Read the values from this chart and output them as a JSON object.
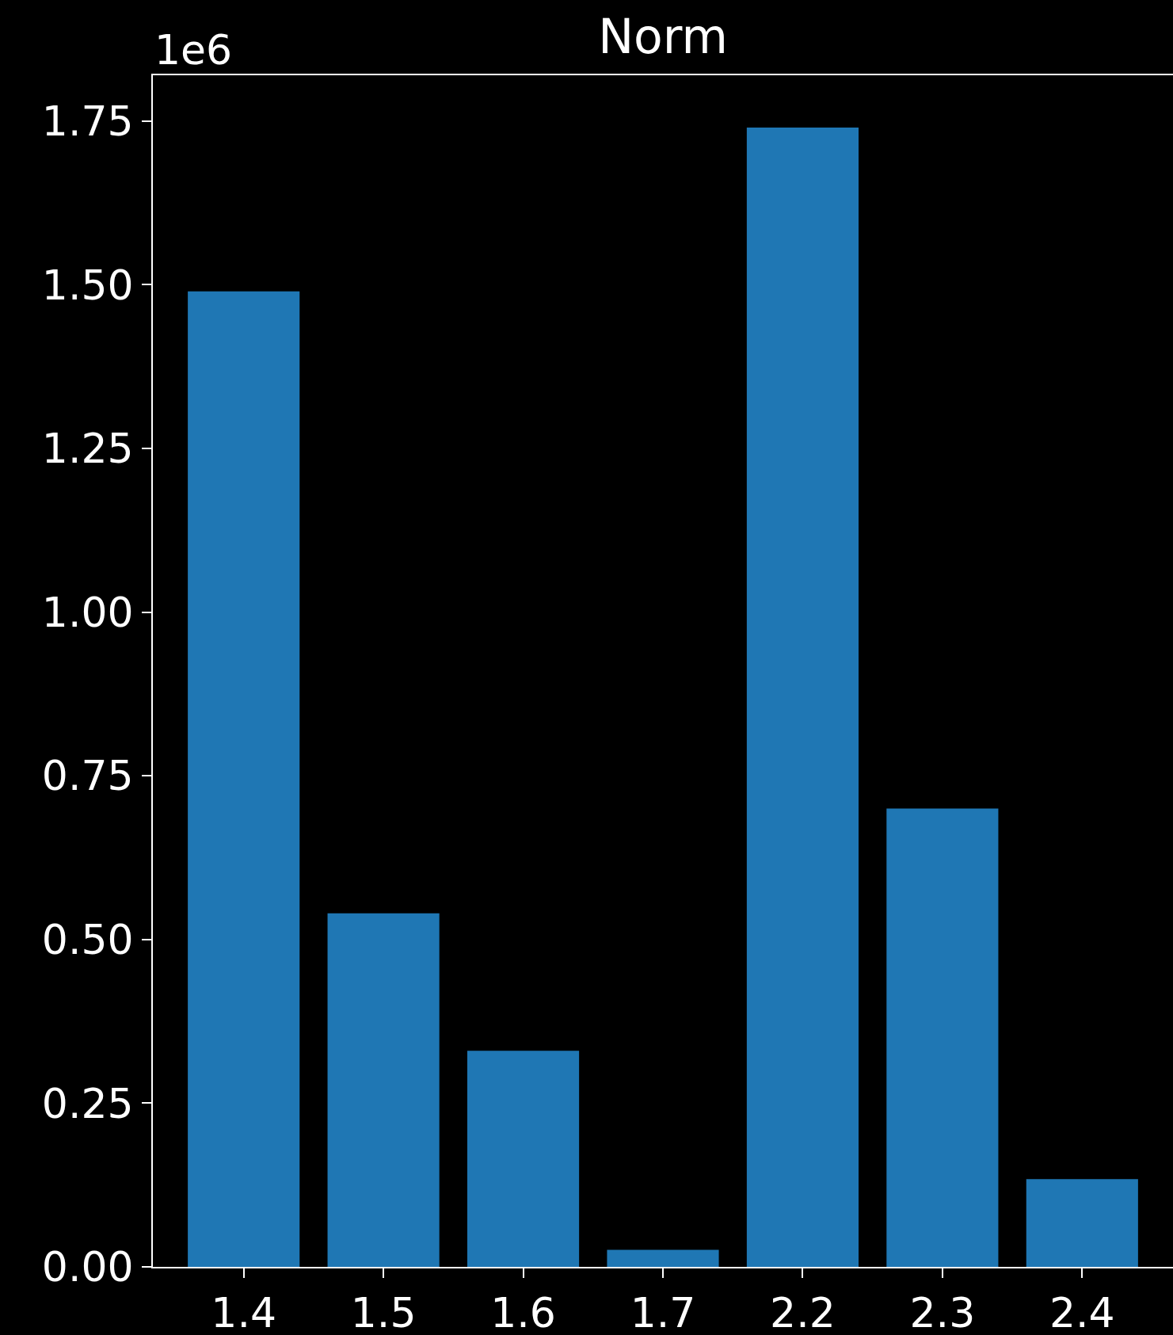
{
  "chart_data": {
    "type": "bar",
    "title": "Norm",
    "categories": [
      "1.4",
      "1.5",
      "1.6",
      "1.7",
      "2.2",
      "2.3",
      "2.4"
    ],
    "values": [
      1.49,
      0.54,
      0.33,
      0.026,
      1.74,
      0.7,
      0.134
    ],
    "color": "#1f77b4",
    "ylim": [
      0,
      1.82
    ],
    "yticks": [
      {
        "value": 0,
        "label": "0.00"
      },
      0.25,
      {
        "value": 0.5,
        "label": "0.50"
      },
      0.75,
      {
        "value": 1,
        "label": "1.00"
      },
      1.25,
      {
        "value": 1.5,
        "label": "1.50"
      },
      1.75
    ],
    "annotations": [
      "1e6"
    ],
    "grid": false,
    "legend": false
  }
}
